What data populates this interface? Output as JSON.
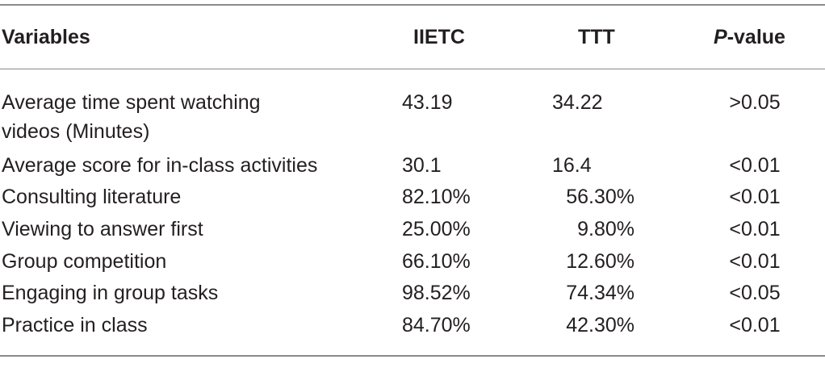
{
  "table": {
    "headers": {
      "variables": "Variables",
      "iietc": "IIETC",
      "ttt": "TTT",
      "pvalue_italic": "P",
      "pvalue_rest": "-value"
    },
    "rows": [
      {
        "variable_line1": "Average time spent watching",
        "variable_line2": "videos (Minutes)",
        "iietc": "43.19",
        "ttt": "34.22",
        "p": ">0.05"
      },
      {
        "variable": "Average score for in-class activities",
        "iietc": "30.1",
        "ttt": "16.4",
        "p": "<0.01"
      },
      {
        "variable": "Consulting literature",
        "iietc": "82.10%",
        "ttt": "56.30%",
        "p": "<0.01"
      },
      {
        "variable": "Viewing to answer first",
        "iietc": "25.00%",
        "ttt": "9.80%",
        "p": "<0.01"
      },
      {
        "variable": "Group competition",
        "iietc": "66.10%",
        "ttt": "12.60%",
        "p": "<0.01"
      },
      {
        "variable": "Engaging in group tasks",
        "iietc": "98.52%",
        "ttt": "74.34%",
        "p": "<0.05"
      },
      {
        "variable": "Practice in class",
        "iietc": "84.70%",
        "ttt": "42.30%",
        "p": "<0.01"
      }
    ]
  }
}
